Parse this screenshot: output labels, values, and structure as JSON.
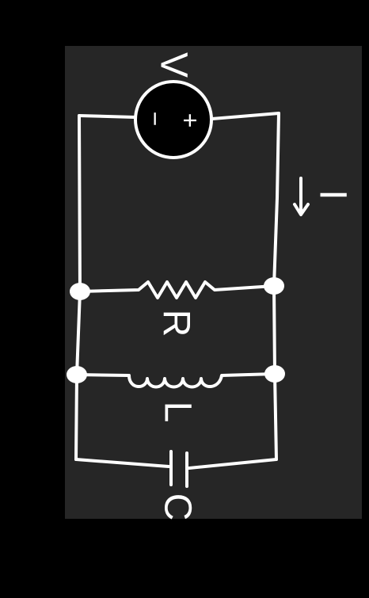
{
  "diagram": {
    "type": "parallel RLC circuit with voltage source",
    "colors": {
      "background": "#000000",
      "board": "#262626",
      "wire": "#ffffff",
      "source_fill": "#000000"
    },
    "source": {
      "name": "V",
      "plus": "+",
      "minus": "−"
    },
    "current": {
      "label": "I",
      "direction": "down"
    },
    "components": {
      "resistor": "R",
      "inductor": "L",
      "capacitor": "C"
    }
  }
}
